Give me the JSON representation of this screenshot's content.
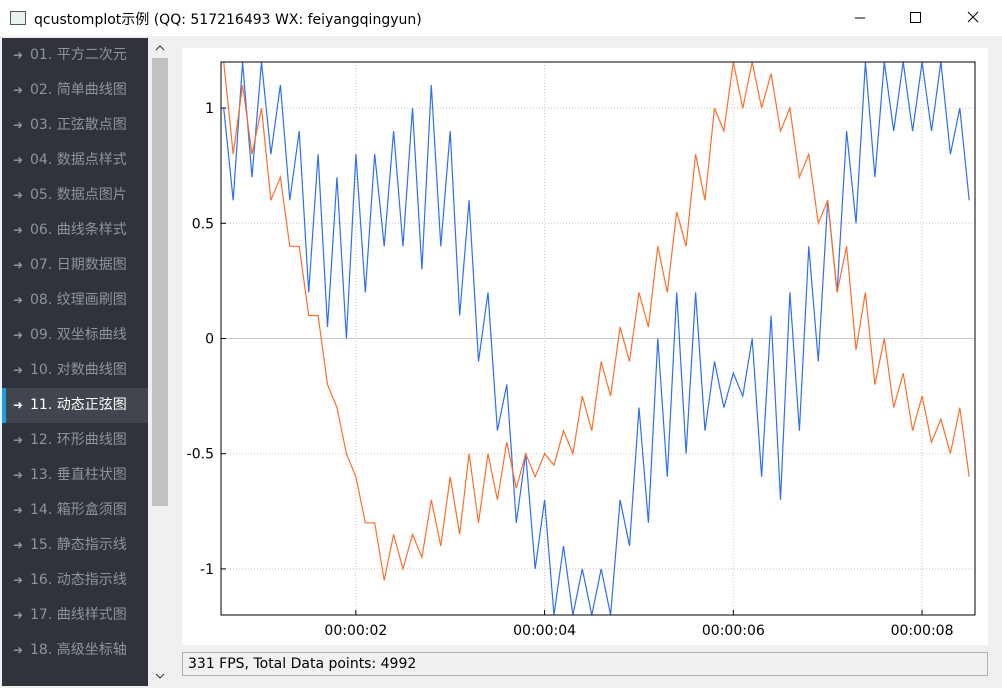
{
  "window": {
    "title": "qcustomplot示例 (QQ: 517216493 WX: feiyangqingyun)"
  },
  "sidebar": {
    "selected": 10,
    "items": [
      "01. 平方二次元",
      "02. 简单曲线图",
      "03. 正弦散点图",
      "04. 数据点样式",
      "05. 数据点图片",
      "06. 曲线条样式",
      "07. 日期数据图",
      "08. 纹理画刷图",
      "09. 双坐标曲线",
      "10. 对数曲线图",
      "11. 动态正弦图",
      "12. 环形曲线图",
      "13. 垂直柱状图",
      "14. 箱形盒须图",
      "15. 静态指示线",
      "16. 动态指示线",
      "17. 曲线样式图",
      "18. 高级坐标轴"
    ]
  },
  "chart_data": {
    "type": "line",
    "x": [
      0.6,
      0.7,
      0.8,
      0.9,
      1.0,
      1.1,
      1.2,
      1.3,
      1.4,
      1.5,
      1.6,
      1.7,
      1.8,
      1.9,
      2.0,
      2.1,
      2.2,
      2.3,
      2.4,
      2.5,
      2.6,
      2.7,
      2.8,
      2.9,
      3.0,
      3.1,
      3.2,
      3.3,
      3.4,
      3.5,
      3.6,
      3.7,
      3.8,
      3.9,
      4.0,
      4.1,
      4.2,
      4.3,
      4.4,
      4.5,
      4.6,
      4.7,
      4.8,
      4.9,
      5.0,
      5.1,
      5.2,
      5.3,
      5.4,
      5.5,
      5.6,
      5.7,
      5.8,
      5.9,
      6.0,
      6.1,
      6.2,
      6.3,
      6.4,
      6.5,
      6.6,
      6.7,
      6.8,
      6.9,
      7.0,
      7.1,
      7.2,
      7.3,
      7.4,
      7.5,
      7.6,
      7.7,
      7.8,
      7.9,
      8.0,
      8.1,
      8.2,
      8.3,
      8.4,
      8.5
    ],
    "xlim": [
      0.571,
      8.561
    ],
    "xticks": [
      {
        "value": 2,
        "label": "00:00:02"
      },
      {
        "value": 4,
        "label": "00:00:04"
      },
      {
        "value": 6,
        "label": "00:00:06"
      },
      {
        "value": 8,
        "label": "00:00:08"
      }
    ],
    "ylim": [
      -1.2,
      1.2
    ],
    "yticks": [
      -1,
      -0.5,
      0,
      0.5,
      1
    ],
    "grid": true,
    "series": [
      {
        "color": "#2f6fee",
        "values": [
          1.0,
          0.6,
          1.2,
          0.7,
          1.2,
          0.8,
          1.1,
          0.6,
          0.9,
          0.2,
          0.8,
          0.05,
          0.7,
          0.0,
          0.8,
          0.2,
          0.8,
          0.4,
          0.9,
          0.4,
          1.0,
          0.3,
          1.1,
          0.4,
          0.9,
          0.1,
          0.6,
          -0.1,
          0.2,
          -0.4,
          -0.2,
          -0.8,
          -0.5,
          -1.0,
          -0.7,
          -1.2,
          -0.9,
          -1.2,
          -1.0,
          -1.2,
          -1.0,
          -1.2,
          -0.7,
          -0.9,
          -0.3,
          -0.8,
          0.0,
          -0.6,
          0.2,
          -0.5,
          0.2,
          -0.4,
          -0.1,
          -0.3,
          -0.15,
          -0.25,
          0.0,
          -0.6,
          0.1,
          -0.7,
          0.2,
          -0.4,
          0.4,
          -0.1,
          0.6,
          0.2,
          0.9,
          0.5,
          1.2,
          0.7,
          1.2,
          0.9,
          1.2,
          0.9,
          1.2,
          0.9,
          1.2,
          0.8,
          1.0,
          0.6
        ]
      },
      {
        "color": "#fb6f2c",
        "values": [
          1.2,
          0.8,
          1.1,
          0.8,
          1.0,
          0.6,
          0.7,
          0.4,
          0.4,
          0.1,
          0.1,
          -0.2,
          -0.3,
          -0.5,
          -0.6,
          -0.8,
          -0.8,
          -1.05,
          -0.85,
          -1.0,
          -0.85,
          -0.95,
          -0.7,
          -0.9,
          -0.6,
          -0.85,
          -0.5,
          -0.8,
          -0.5,
          -0.7,
          -0.45,
          -0.65,
          -0.5,
          -0.6,
          -0.5,
          -0.55,
          -0.4,
          -0.5,
          -0.25,
          -0.4,
          -0.1,
          -0.25,
          0.05,
          -0.1,
          0.2,
          0.05,
          0.4,
          0.2,
          0.55,
          0.4,
          0.8,
          0.6,
          1.0,
          0.9,
          1.2,
          1.0,
          1.2,
          1.0,
          1.15,
          0.9,
          1.0,
          0.7,
          0.8,
          0.5,
          0.6,
          0.2,
          0.4,
          -0.05,
          0.2,
          -0.2,
          0.0,
          -0.3,
          -0.15,
          -0.4,
          -0.25,
          -0.45,
          -0.35,
          -0.5,
          -0.3,
          -0.6
        ]
      }
    ]
  },
  "status": "331 FPS, Total Data points: 4992"
}
